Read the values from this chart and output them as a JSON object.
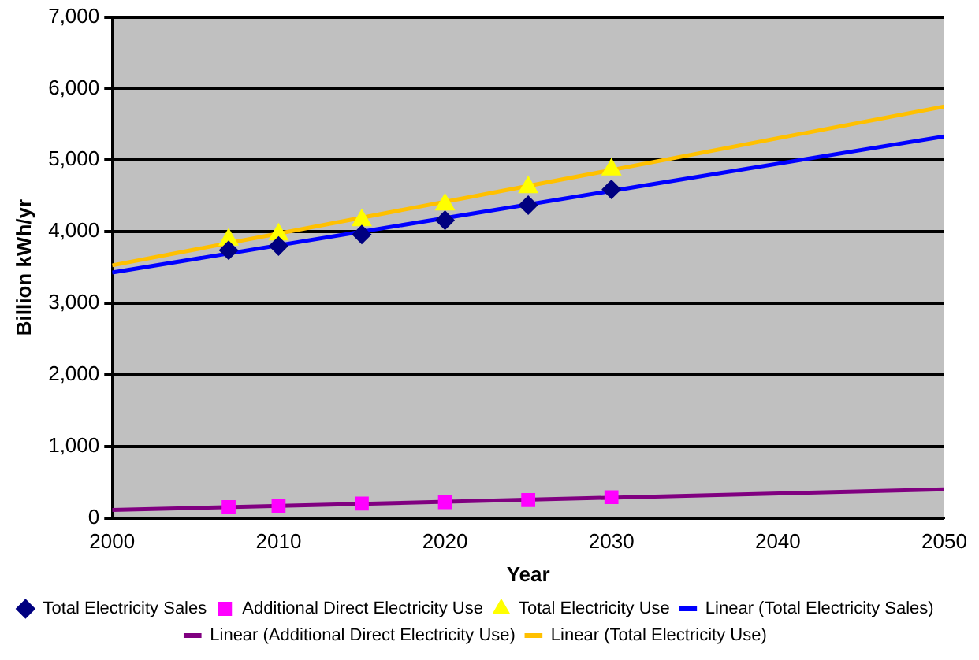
{
  "chart_data": {
    "type": "scatter",
    "xlabel": "Year",
    "ylabel": "Billion kWh/yr",
    "xlim": [
      2000,
      2050
    ],
    "xticks": [
      2000,
      2010,
      2020,
      2030,
      2040,
      2050
    ],
    "ylim": [
      0,
      7000
    ],
    "yticks": [
      {
        "value": 0,
        "label": "0"
      },
      {
        "value": 1000,
        "label": "1,000"
      },
      {
        "value": 2000,
        "label": "2,000"
      },
      {
        "value": 3000,
        "label": "3,000"
      },
      {
        "value": 4000,
        "label": "4,000"
      },
      {
        "value": 5000,
        "label": "5,000"
      },
      {
        "value": 6000,
        "label": "6,000"
      },
      {
        "value": 7000,
        "label": "7,000"
      }
    ],
    "grid": "y",
    "legend": "bottom",
    "series": [
      {
        "name": "Total Electricity Sales",
        "marker": "diamond",
        "color": "#000080",
        "x": [
          2007,
          2010,
          2015,
          2020,
          2025,
          2030
        ],
        "values": [
          3740,
          3800,
          3960,
          4160,
          4370,
          4590
        ]
      },
      {
        "name": "Additional Direct Electricity Use",
        "marker": "square",
        "color": "#ff00ff",
        "x": [
          2007,
          2010,
          2015,
          2020,
          2025,
          2030
        ],
        "values": [
          150,
          170,
          200,
          220,
          250,
          290
        ]
      },
      {
        "name": "Total Electricity Use",
        "marker": "triangle",
        "color": "#ffff00",
        "x": [
          2007,
          2010,
          2015,
          2020,
          2025,
          2030
        ],
        "values": [
          3890,
          3960,
          4160,
          4380,
          4620,
          4870
        ]
      },
      {
        "name": "Linear (Total Electricity Sales)",
        "type": "line",
        "marker": "none",
        "color": "#0000ff",
        "x": [
          2000,
          2050
        ],
        "values": [
          3430,
          5330
        ]
      },
      {
        "name": "Linear (Additional Direct Electricity Use)",
        "type": "line",
        "marker": "none",
        "color": "#800080",
        "x": [
          2000,
          2050
        ],
        "values": [
          110,
          400
        ]
      },
      {
        "name": "Linear (Total Electricity Use)",
        "type": "line",
        "marker": "none",
        "color": "#ffc000",
        "x": [
          2000,
          2050
        ],
        "values": [
          3530,
          5750
        ]
      }
    ]
  }
}
